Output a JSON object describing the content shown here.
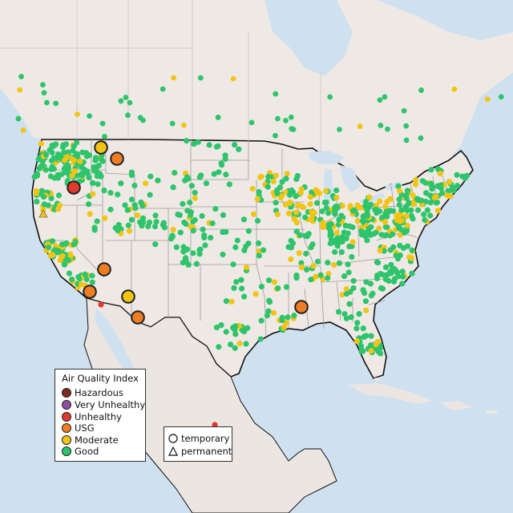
{
  "colors": {
    "water": "#cfe0ee",
    "land": "#efe9e6",
    "land_foreign": "#ece6e3",
    "state_border": "#9a9a9a",
    "national_border": "#111111",
    "Hazardous": "#7e2a1e",
    "Very Unhealthy": "#8f4ea3",
    "Unhealthy": "#e3382f",
    "USG": "#ef7d22",
    "Moderate": "#f2c414",
    "Good": "#2ec46b"
  },
  "legend": {
    "title": "Air Quality Index",
    "categories": [
      {
        "label": "Hazardous",
        "color": "#7e2a1e"
      },
      {
        "label": "Very Unhealthy",
        "color": "#8f4ea3"
      },
      {
        "label": "Unhealthy",
        "color": "#e3382f"
      },
      {
        "label": "USG",
        "color": "#ef7d22"
      },
      {
        "label": "Moderate",
        "color": "#f2c414"
      },
      {
        "label": "Good",
        "color": "#2ec46b"
      }
    ]
  },
  "monitor_types": {
    "temporary": "temporary",
    "permanent": "permanent"
  }
}
